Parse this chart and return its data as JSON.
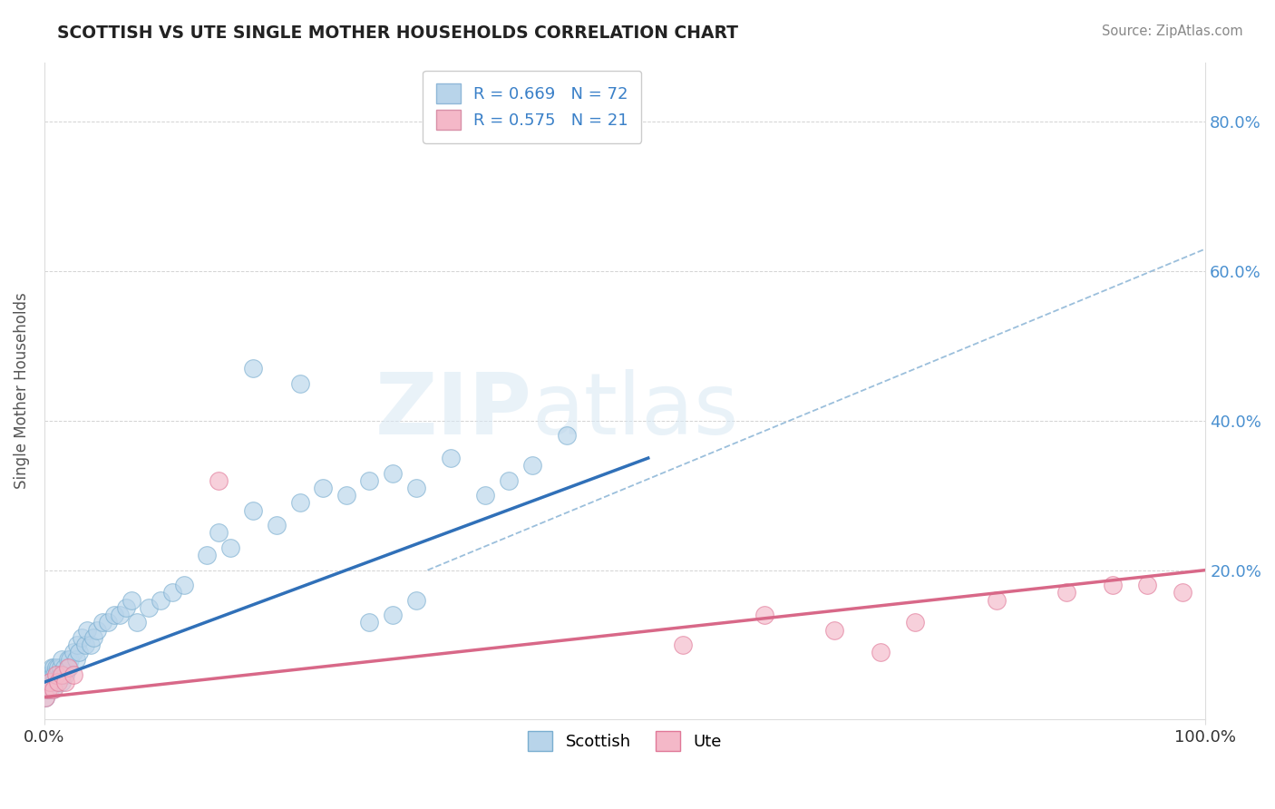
{
  "title": "SCOTTISH VS UTE SINGLE MOTHER HOUSEHOLDS CORRELATION CHART",
  "source_text": "Source: ZipAtlas.com",
  "ylabel": "Single Mother Households",
  "xlim": [
    0,
    1.0
  ],
  "ylim": [
    0,
    0.88
  ],
  "yticks": [
    0.0,
    0.2,
    0.4,
    0.6,
    0.8
  ],
  "xtick_labels": [
    "0.0%",
    "100.0%"
  ],
  "ytick_labels_right": [
    "20.0%",
    "40.0%",
    "60.0%",
    "80.0%"
  ],
  "legend_items": [
    {
      "label": "R = 0.669   N = 72",
      "color": "#b8d4ea"
    },
    {
      "label": "R = 0.575   N = 21",
      "color": "#f4b8c8"
    }
  ],
  "bottom_legend": [
    {
      "label": "Scottish",
      "color": "#b8d4ea"
    },
    {
      "label": "Ute",
      "color": "#f4b8c8"
    }
  ],
  "scottish_dot_color": "#b8d4ea",
  "scottish_edge_color": "#7aaed0",
  "ute_dot_color": "#f4b8c8",
  "ute_edge_color": "#e07898",
  "scottish_line_color": "#3070b8",
  "ute_line_color": "#d86888",
  "dashed_line_color": "#90b8d8",
  "background_color": "#ffffff",
  "grid_color": "#c8c8c8",
  "title_color": "#222222",
  "source_color": "#888888",
  "watermark_text": "ZIPatlas",
  "watermark_color": "#d8e8f4",
  "scottish_x": [
    0.001,
    0.002,
    0.003,
    0.003,
    0.004,
    0.004,
    0.005,
    0.005,
    0.006,
    0.006,
    0.007,
    0.007,
    0.008,
    0.008,
    0.009,
    0.01,
    0.01,
    0.011,
    0.012,
    0.012,
    0.013,
    0.014,
    0.015,
    0.015,
    0.016,
    0.017,
    0.018,
    0.02,
    0.021,
    0.022,
    0.025,
    0.027,
    0.028,
    0.03,
    0.032,
    0.035,
    0.037,
    0.04,
    0.042,
    0.045,
    0.05,
    0.055,
    0.06,
    0.065,
    0.07,
    0.075,
    0.08,
    0.09,
    0.1,
    0.11,
    0.12,
    0.14,
    0.15,
    0.16,
    0.18,
    0.2,
    0.22,
    0.24,
    0.26,
    0.28,
    0.3,
    0.32,
    0.35,
    0.38,
    0.4,
    0.42,
    0.45,
    0.28,
    0.3,
    0.32,
    0.18,
    0.22
  ],
  "scottish_y": [
    0.03,
    0.04,
    0.04,
    0.05,
    0.05,
    0.06,
    0.04,
    0.06,
    0.05,
    0.07,
    0.04,
    0.06,
    0.05,
    0.07,
    0.06,
    0.05,
    0.07,
    0.06,
    0.05,
    0.07,
    0.06,
    0.07,
    0.05,
    0.08,
    0.06,
    0.07,
    0.06,
    0.08,
    0.07,
    0.08,
    0.09,
    0.08,
    0.1,
    0.09,
    0.11,
    0.1,
    0.12,
    0.1,
    0.11,
    0.12,
    0.13,
    0.13,
    0.14,
    0.14,
    0.15,
    0.16,
    0.13,
    0.15,
    0.16,
    0.17,
    0.18,
    0.22,
    0.25,
    0.23,
    0.28,
    0.26,
    0.29,
    0.31,
    0.3,
    0.32,
    0.33,
    0.31,
    0.35,
    0.3,
    0.32,
    0.34,
    0.38,
    0.13,
    0.14,
    0.16,
    0.47,
    0.45
  ],
  "ute_x": [
    0.001,
    0.003,
    0.005,
    0.008,
    0.01,
    0.012,
    0.015,
    0.018,
    0.02,
    0.025,
    0.15,
    0.55,
    0.62,
    0.68,
    0.75,
    0.82,
    0.88,
    0.92,
    0.95,
    0.98,
    0.72
  ],
  "ute_y": [
    0.03,
    0.04,
    0.05,
    0.04,
    0.06,
    0.05,
    0.06,
    0.05,
    0.07,
    0.06,
    0.32,
    0.1,
    0.14,
    0.12,
    0.13,
    0.16,
    0.17,
    0.18,
    0.18,
    0.17,
    0.09
  ],
  "scottish_line": [
    0.0,
    0.05,
    0.52,
    0.35
  ],
  "ute_line": [
    0.0,
    0.03,
    1.0,
    0.2
  ],
  "dashed_line": [
    0.33,
    0.2,
    1.0,
    0.63
  ]
}
